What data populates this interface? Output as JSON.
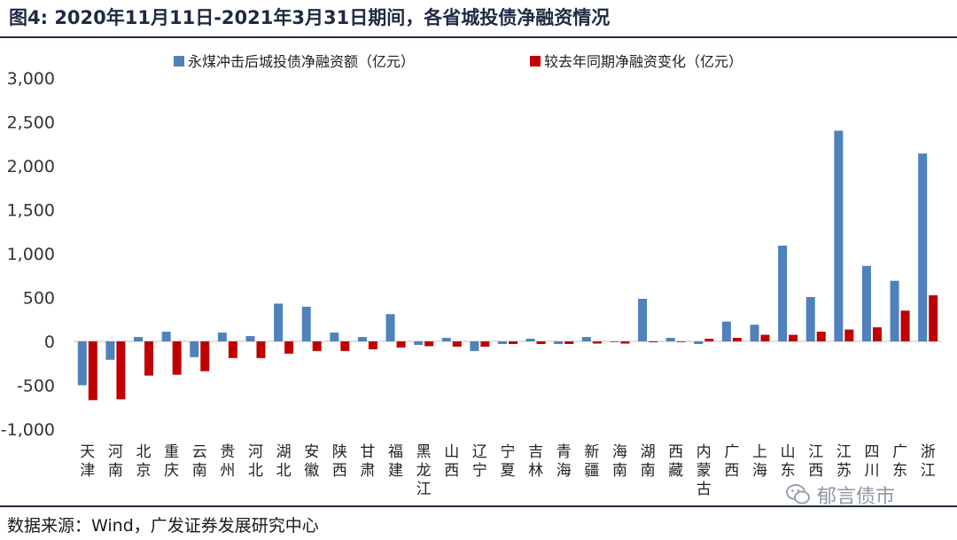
{
  "figure": {
    "title": "图4:  2020年11月11日-2021年3月31日期间，各省城投债净融资情况",
    "source": "数据来源：Wind，广发证券发展研究中心",
    "watermark": "郁言债市"
  },
  "chart_data": {
    "type": "bar",
    "categories": [
      "天津",
      "河南",
      "北京",
      "重庆",
      "云南",
      "贵州",
      "河北",
      "湖北",
      "安徽",
      "陕西",
      "甘肃",
      "福建",
      "黑龙江",
      "山西",
      "辽宁",
      "宁夏",
      "吉林",
      "青海",
      "新疆",
      "海南",
      "湖南",
      "西藏",
      "内蒙古",
      "广西",
      "上海",
      "山东",
      "江西",
      "江苏",
      "四川",
      "广东",
      "浙江"
    ],
    "series": [
      {
        "name": "永煤冲击后城投债净融资额（亿元）",
        "color": "#4f81bd",
        "values": [
          -500,
          -210,
          50,
          110,
          -180,
          100,
          60,
          430,
          395,
          100,
          50,
          310,
          -40,
          40,
          -110,
          -30,
          30,
          -30,
          50,
          -10,
          485,
          40,
          -30,
          225,
          190,
          1090,
          505,
          2400,
          860,
          690,
          2140
        ]
      },
      {
        "name": "较去年同期净融资变化（亿元）",
        "color": "#c00000",
        "values": [
          -670,
          -660,
          -390,
          -380,
          -340,
          -190,
          -190,
          -140,
          -110,
          -110,
          -90,
          -70,
          -55,
          -60,
          -60,
          -30,
          -30,
          -30,
          -25,
          -25,
          -10,
          0,
          30,
          40,
          75,
          75,
          110,
          135,
          160,
          350,
          525
        ]
      }
    ],
    "ylim": [
      -1000,
      3000
    ],
    "yticks": [
      -1000,
      -500,
      0,
      500,
      1000,
      1500,
      2000,
      2500,
      3000
    ],
    "ytick_labels": [
      "-1,000",
      "-500",
      "0",
      "500",
      "1,000",
      "1,500",
      "2,000",
      "2,500",
      "3,000"
    ],
    "legend_position": "top",
    "grid": false
  }
}
